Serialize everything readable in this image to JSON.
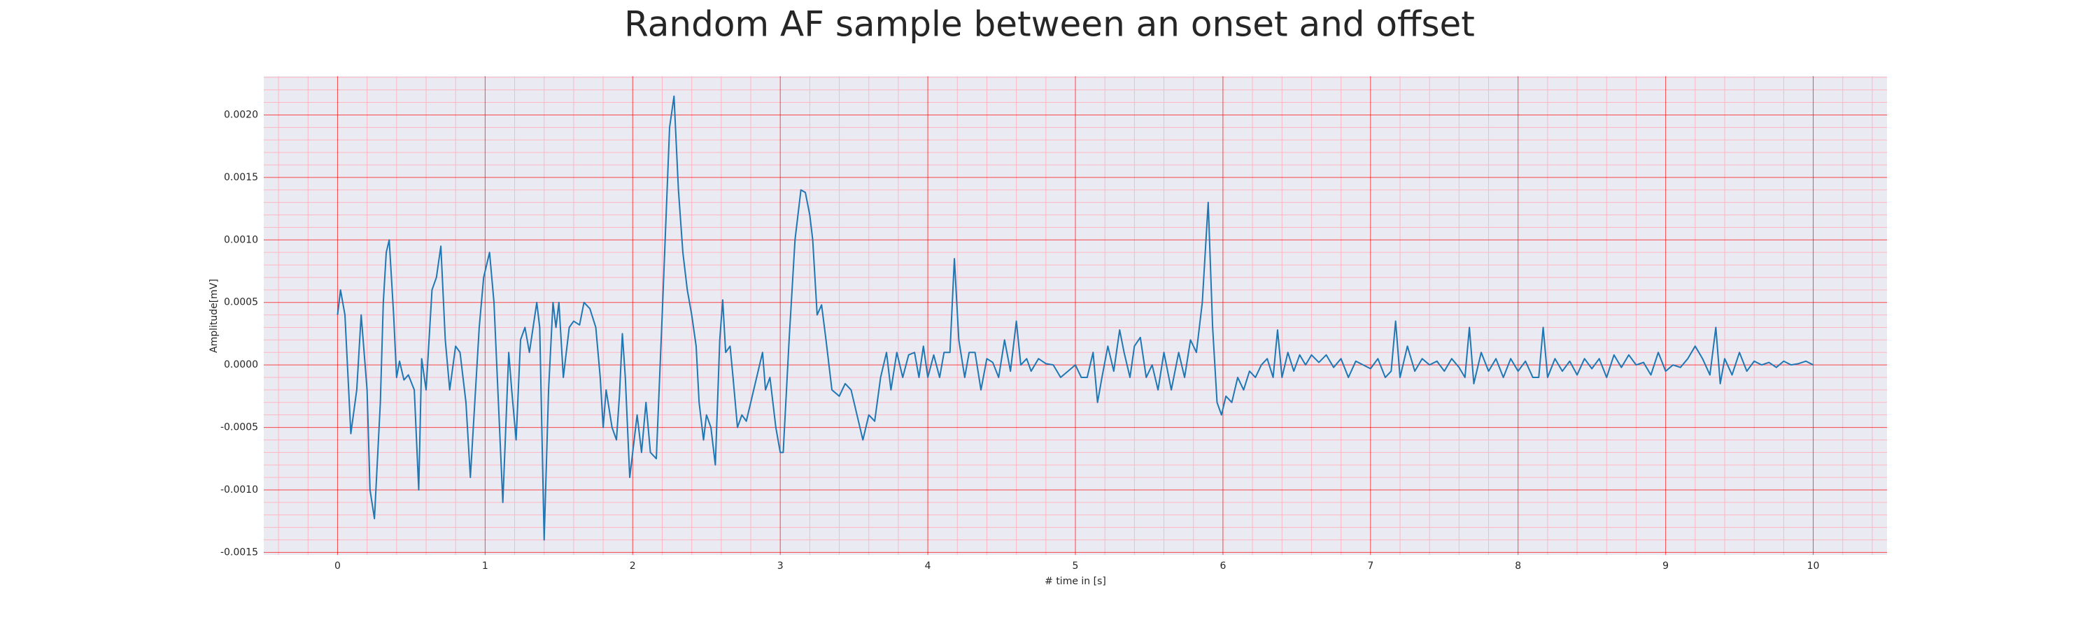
{
  "chart_data": {
    "type": "line",
    "title": "Random AF sample between an onset and offset",
    "xlabel": "# time in [s]",
    "ylabel": "Amplitude[mV]",
    "x": [
      0,
      0.02,
      0.05,
      0.09,
      0.13,
      0.16,
      0.2,
      0.22,
      0.25,
      0.29,
      0.31,
      0.33,
      0.35,
      0.38,
      0.4,
      0.42,
      0.45,
      0.48,
      0.52,
      0.55,
      0.57,
      0.6,
      0.64,
      0.67,
      0.7,
      0.73,
      0.76,
      0.8,
      0.83,
      0.87,
      0.9,
      0.93,
      0.96,
      0.99,
      1.03,
      1.06,
      1.09,
      1.12,
      1.16,
      1.18,
      1.21,
      1.24,
      1.27,
      1.3,
      1.35,
      1.37,
      1.4,
      1.43,
      1.46,
      1.48,
      1.5,
      1.53,
      1.57,
      1.6,
      1.64,
      1.67,
      1.71,
      1.75,
      1.78,
      1.8,
      1.82,
      1.86,
      1.89,
      1.91,
      1.93,
      1.95,
      1.98,
      2.0,
      2.03,
      2.06,
      2.09,
      2.12,
      2.16,
      2.2,
      2.25,
      2.28,
      2.31,
      2.34,
      2.37,
      2.4,
      2.43,
      2.45,
      2.48,
      2.5,
      2.53,
      2.56,
      2.59,
      2.61,
      2.63,
      2.66,
      2.68,
      2.71,
      2.74,
      2.77,
      2.8,
      2.84,
      2.88,
      2.9,
      2.93,
      2.97,
      3.0,
      3.02,
      3.06,
      3.1,
      3.14,
      3.17,
      3.2,
      3.22,
      3.25,
      3.28,
      3.31,
      3.35,
      3.4,
      3.44,
      3.48,
      3.52,
      3.56,
      3.6,
      3.64,
      3.68,
      3.72,
      3.75,
      3.79,
      3.83,
      3.87,
      3.91,
      3.94,
      3.97,
      4.0,
      4.04,
      4.08,
      4.11,
      4.15,
      4.18,
      4.21,
      4.25,
      4.28,
      4.32,
      4.36,
      4.4,
      4.44,
      4.48,
      4.52,
      4.56,
      4.6,
      4.63,
      4.67,
      4.7,
      4.75,
      4.8,
      4.85,
      4.9,
      4.95,
      5.0,
      5.04,
      5.08,
      5.12,
      5.15,
      5.18,
      5.22,
      5.26,
      5.3,
      5.33,
      5.37,
      5.4,
      5.44,
      5.48,
      5.52,
      5.56,
      5.6,
      5.65,
      5.7,
      5.74,
      5.78,
      5.82,
      5.86,
      5.9,
      5.93,
      5.96,
      5.99,
      6.02,
      6.06,
      6.1,
      6.14,
      6.18,
      6.22,
      6.26,
      6.3,
      6.34,
      6.37,
      6.4,
      6.44,
      6.48,
      6.52,
      6.56,
      6.6,
      6.65,
      6.7,
      6.75,
      6.8,
      6.85,
      6.9,
      6.95,
      7.0,
      7.05,
      7.1,
      7.14,
      7.17,
      7.2,
      7.25,
      7.3,
      7.35,
      7.4,
      7.45,
      7.5,
      7.55,
      7.6,
      7.64,
      7.67,
      7.7,
      7.75,
      7.8,
      7.85,
      7.9,
      7.95,
      8.0,
      8.05,
      8.1,
      8.14,
      8.17,
      8.2,
      8.25,
      8.3,
      8.35,
      8.4,
      8.45,
      8.5,
      8.55,
      8.6,
      8.65,
      8.7,
      8.75,
      8.8,
      8.85,
      8.9,
      8.95,
      9.0,
      9.05,
      9.1,
      9.15,
      9.2,
      9.25,
      9.3,
      9.34,
      9.37,
      9.4,
      9.45,
      9.5,
      9.55,
      9.6,
      9.65,
      9.7,
      9.75,
      9.8,
      9.85,
      9.9,
      9.95,
      10.0
    ],
    "series": [
      {
        "color": "#1f77b4",
        "values": [
          0.0004,
          0.0006,
          0.0004,
          -0.00055,
          -0.0002,
          0.0004,
          -0.0002,
          -0.001,
          -0.00123,
          -0.0003,
          0.0005,
          0.0009,
          0.001,
          0.0004,
          -0.0001,
          3e-05,
          -0.00012,
          -8e-05,
          -0.0002,
          -0.001,
          5e-05,
          -0.0002,
          0.0006,
          0.0007,
          0.00095,
          0.0002,
          -0.0002,
          0.00015,
          0.0001,
          -0.0003,
          -0.0009,
          -0.0003,
          0.0003,
          0.0007,
          0.0009,
          0.0005,
          -0.0003,
          -0.0011,
          0.0001,
          -0.0002,
          -0.0006,
          0.0002,
          0.0003,
          0.0001,
          0.0005,
          0.0003,
          -0.0014,
          -0.0002,
          0.0005,
          0.0003,
          0.0005,
          -0.0001,
          0.0003,
          0.00035,
          0.00032,
          0.0005,
          0.00045,
          0.0003,
          -0.0001,
          -0.0005,
          -0.0002,
          -0.0005,
          -0.0006,
          -0.00025,
          0.00025,
          -0.0001,
          -0.0009,
          -0.0007,
          -0.0004,
          -0.0007,
          -0.0003,
          -0.0007,
          -0.00075,
          0.0004,
          0.0019,
          0.00215,
          0.0014,
          0.0009,
          0.0006,
          0.0004,
          0.00015,
          -0.0003,
          -0.0006,
          -0.0004,
          -0.0005,
          -0.0008,
          0.0002,
          0.00052,
          0.0001,
          0.00015,
          -0.0001,
          -0.0005,
          -0.0004,
          -0.00045,
          -0.0003,
          -0.0001,
          0.0001,
          -0.0002,
          -0.0001,
          -0.0005,
          -0.0007,
          -0.0007,
          0.0002,
          0.001,
          0.0014,
          0.00138,
          0.0012,
          0.001,
          0.0004,
          0.00048,
          0.0002,
          -0.0002,
          -0.00025,
          -0.00015,
          -0.0002,
          -0.0004,
          -0.0006,
          -0.0004,
          -0.00045,
          -0.0001,
          0.0001,
          -0.0002,
          0.0001,
          -0.0001,
          8e-05,
          0.0001,
          -0.0001,
          0.00015,
          -0.0001,
          8e-05,
          -0.0001,
          0.0001,
          0.0001,
          0.00085,
          0.0002,
          -0.0001,
          0.0001,
          0.0001,
          -0.0002,
          5e-05,
          2e-05,
          -0.0001,
          0.0002,
          -5e-05,
          0.00035,
          0.0,
          5e-05,
          -5e-05,
          5e-05,
          1e-05,
          0.0,
          -0.0001,
          -5e-05,
          0.0,
          -0.0001,
          -0.0001,
          0.0001,
          -0.0003,
          -0.0001,
          0.00015,
          -5e-05,
          0.00028,
          0.0001,
          -0.0001,
          0.00015,
          0.00022,
          -0.0001,
          0.0,
          -0.0002,
          0.0001,
          -0.0002,
          0.0001,
          -0.0001,
          0.0002,
          0.0001,
          0.0005,
          0.0013,
          0.0003,
          -0.0003,
          -0.0004,
          -0.00025,
          -0.0003,
          -0.0001,
          -0.0002,
          -5e-05,
          -0.0001,
          0.0,
          5e-05,
          -0.0001,
          0.00028,
          -0.0001,
          0.0001,
          -5e-05,
          8e-05,
          0.0,
          8e-05,
          2e-05,
          8e-05,
          -2e-05,
          5e-05,
          -0.0001,
          3e-05,
          0.0,
          -3e-05,
          5e-05,
          -0.0001,
          -5e-05,
          0.00035,
          -0.0001,
          0.00015,
          -5e-05,
          5e-05,
          0.0,
          3e-05,
          -5e-05,
          5e-05,
          -2e-05,
          -0.0001,
          0.0003,
          -0.00015,
          0.0001,
          -5e-05,
          5e-05,
          -0.0001,
          5e-05,
          -5e-05,
          3e-05,
          -0.0001,
          -0.0001,
          0.0003,
          -0.0001,
          5e-05,
          -5e-05,
          3e-05,
          -8e-05,
          5e-05,
          -3e-05,
          5e-05,
          -0.0001,
          8e-05,
          -2e-05,
          8e-05,
          0.0,
          2e-05,
          -8e-05,
          0.0001,
          -5e-05,
          0.0,
          -2e-05,
          5e-05,
          0.00015,
          5e-05,
          -8e-05,
          0.0003,
          -0.00015,
          5e-05,
          -8e-05,
          0.0001,
          -5e-05,
          3e-05,
          0.0,
          2e-05,
          -2e-05,
          3e-05,
          0.0,
          1e-05,
          3e-05,
          0.0
        ]
      }
    ],
    "xlim": [
      -0.5,
      10.5
    ],
    "xticks": [
      0,
      1,
      2,
      3,
      4,
      5,
      6,
      7,
      8,
      9,
      10
    ],
    "ylim": [
      -0.00152,
      0.00231
    ],
    "yticks": [
      {
        "value": -0.0015,
        "label": "-0.0015"
      },
      {
        "value": -0.001,
        "label": "-0.0010"
      },
      {
        "value": -0.0005,
        "label": "-0.0005"
      },
      {
        "value": 0,
        "label": "0.0000"
      },
      {
        "value": 0.0005,
        "label": "0.0005"
      },
      {
        "value": 0.001,
        "label": "0.0010"
      },
      {
        "value": 0.0015,
        "label": "0.0015"
      },
      {
        "value": 0.002,
        "label": "0.0020"
      }
    ],
    "xminorticks": [
      -0.4,
      -0.2,
      0.2,
      0.4,
      0.6,
      0.8,
      1.2,
      1.4,
      1.6,
      1.8,
      2.2,
      2.4,
      2.6,
      2.8,
      3.2,
      3.4,
      3.6,
      3.8,
      4.2,
      4.4,
      4.6,
      4.8,
      5.2,
      5.4,
      5.6,
      5.8,
      6.2,
      6.4,
      6.6,
      6.8,
      7.2,
      7.4,
      7.6,
      7.8,
      8.2,
      8.4,
      8.6,
      8.8,
      9.2,
      9.4,
      9.6,
      9.8,
      10.2,
      10.4
    ],
    "yminorticks": [
      -0.0014,
      -0.0013,
      -0.0012,
      -0.0011,
      -0.0009,
      -0.0008,
      -0.0007,
      -0.0006,
      -0.0004,
      -0.0003,
      -0.0002,
      -0.0001,
      0.0001,
      0.0002,
      0.0003,
      0.0004,
      0.0006,
      0.0007,
      0.0008,
      0.0009,
      0.0011,
      0.0012,
      0.0013,
      0.0014,
      0.0016,
      0.0017,
      0.0018,
      0.0019,
      0.0021,
      0.0022,
      0.0023
    ],
    "grid": true,
    "grid_color": "#ff0000",
    "minor_grid_color": "#ffb6c1",
    "background": "#eaeaf2"
  }
}
